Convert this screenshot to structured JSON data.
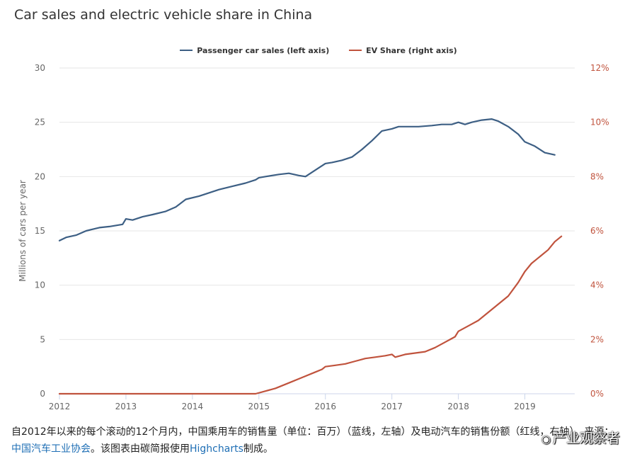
{
  "chart_data": {
    "type": "line",
    "title": "Car sales and electric vehicle share in China",
    "ylabel": "Millions of cars per year",
    "y2label": "",
    "ylim": [
      0,
      30
    ],
    "y2lim": [
      0,
      12
    ],
    "y_ticks": [
      "0",
      "5",
      "10",
      "15",
      "20",
      "25",
      "30"
    ],
    "y2_ticks": [
      "0%",
      "2%",
      "4%",
      "6%",
      "8%",
      "10%",
      "12%"
    ],
    "x_ticks": [
      "2012",
      "2013",
      "2014",
      "2015",
      "2016",
      "2017",
      "2018",
      "2019"
    ],
    "xlim": [
      2012,
      2019.75
    ],
    "grid": true,
    "legend_position": "top-center",
    "series": [
      {
        "name": "Passenger car sales (left axis)",
        "axis": "left",
        "color": "#3d5f84",
        "x": [
          2012.0,
          2012.1,
          2012.25,
          2012.4,
          2012.6,
          2012.75,
          2012.95,
          2013.0,
          2013.1,
          2013.25,
          2013.4,
          2013.6,
          2013.75,
          2013.9,
          2014.1,
          2014.25,
          2014.4,
          2014.6,
          2014.8,
          2014.95,
          2015.0,
          2015.1,
          2015.3,
          2015.45,
          2015.6,
          2015.7,
          2015.85,
          2016.0,
          2016.1,
          2016.25,
          2016.4,
          2016.55,
          2016.7,
          2016.85,
          2017.0,
          2017.1,
          2017.25,
          2017.4,
          2017.6,
          2017.75,
          2017.9,
          2018.0,
          2018.1,
          2018.2,
          2018.35,
          2018.5,
          2018.6,
          2018.75,
          2018.9,
          2019.0,
          2019.15,
          2019.3,
          2019.45
        ],
        "values": [
          14.1,
          14.4,
          14.6,
          15.0,
          15.3,
          15.4,
          15.6,
          16.1,
          16.0,
          16.3,
          16.5,
          16.8,
          17.2,
          17.9,
          18.2,
          18.5,
          18.8,
          19.1,
          19.4,
          19.7,
          19.9,
          20.0,
          20.2,
          20.3,
          20.1,
          20.0,
          20.6,
          21.2,
          21.3,
          21.5,
          21.8,
          22.5,
          23.3,
          24.2,
          24.4,
          24.6,
          24.6,
          24.6,
          24.7,
          24.8,
          24.8,
          25.0,
          24.8,
          25.0,
          25.2,
          25.3,
          25.1,
          24.6,
          23.9,
          23.2,
          22.8,
          22.2,
          22.0
        ]
      },
      {
        "name": "EV Share (right axis)",
        "axis": "right",
        "color": "#c0533d",
        "x": [
          2012.0,
          2014.6,
          2014.95,
          2015.1,
          2015.25,
          2015.45,
          2015.65,
          2015.85,
          2015.95,
          2016.0,
          2016.15,
          2016.3,
          2016.45,
          2016.6,
          2016.75,
          2016.9,
          2017.0,
          2017.05,
          2017.2,
          2017.35,
          2017.5,
          2017.65,
          2017.8,
          2017.95,
          2018.0,
          2018.15,
          2018.3,
          2018.45,
          2018.6,
          2018.75,
          2018.9,
          2019.0,
          2019.1,
          2019.25,
          2019.35,
          2019.45,
          2019.55
        ],
        "values": [
          0,
          0,
          0,
          0.1,
          0.2,
          0.4,
          0.6,
          0.8,
          0.9,
          1.0,
          1.05,
          1.1,
          1.2,
          1.3,
          1.35,
          1.4,
          1.45,
          1.35,
          1.45,
          1.5,
          1.55,
          1.7,
          1.9,
          2.1,
          2.3,
          2.5,
          2.7,
          3.0,
          3.3,
          3.6,
          4.1,
          4.5,
          4.8,
          5.1,
          5.3,
          5.6,
          5.8
        ]
      }
    ]
  },
  "caption": {
    "part1": "自2012年以来的每个滚动的12个月内，中国乘用车的销售量（单位：百万）（蓝线，左轴）及电动汽车的销售份额（红线，右轴）。来源：",
    "source_link": "中国汽车工业协会",
    "part2": "。该图表由碳简报使用",
    "tool_link": "Highcharts",
    "part3": "制成。"
  },
  "watermark": {
    "icon": "wechat-icon",
    "text": "产业观察者"
  }
}
